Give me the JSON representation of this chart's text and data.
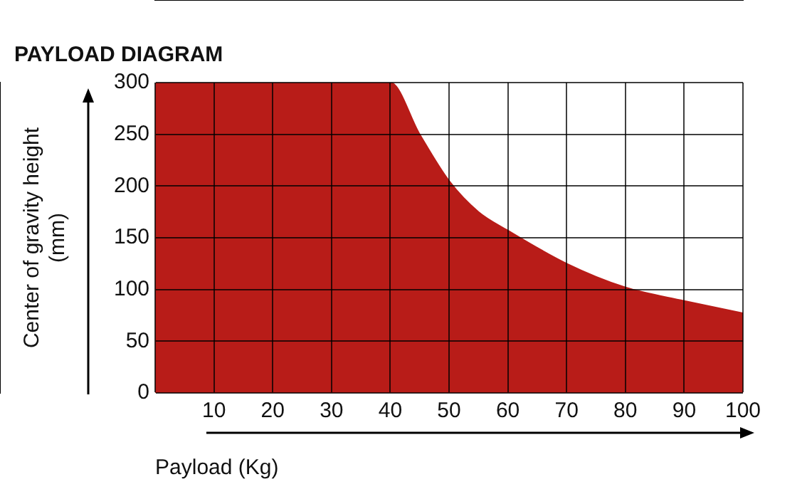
{
  "chart_data": {
    "type": "area",
    "title": "PAYLOAD DIAGRAM",
    "xlabel": "Payload (Kg)",
    "ylabel": "Center of gravity height (mm)",
    "x": [
      0,
      40,
      45,
      50,
      55,
      60,
      70,
      80,
      90,
      100
    ],
    "values": [
      300,
      300,
      250,
      205,
      175,
      157,
      125,
      102,
      89,
      77
    ],
    "color": "#b81c18",
    "xlim": [
      0,
      100
    ],
    "xticks": [
      {
        "value": 0,
        "label": null
      },
      10,
      20,
      30,
      40,
      50,
      60,
      70,
      80,
      90,
      100
    ],
    "ylim": [
      0,
      300
    ],
    "yticks": [
      0,
      50,
      100,
      150,
      200,
      250,
      300
    ],
    "grid": true,
    "legend": false,
    "marker": "none"
  }
}
